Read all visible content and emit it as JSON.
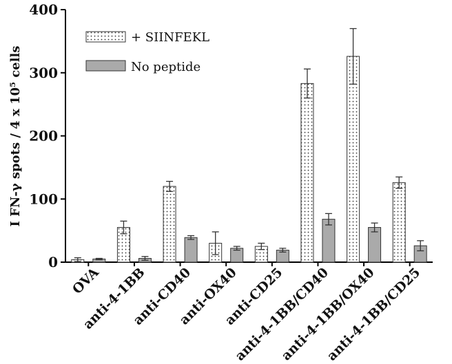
{
  "chart_data": {
    "type": "bar",
    "title": "",
    "xlabel": "",
    "ylabel": "I FN-γ spots / 4 x 10⁵ cells",
    "ylim": [
      0,
      400
    ],
    "yticks": [
      0,
      100,
      200,
      300,
      400
    ],
    "categories": [
      "OVA",
      "anti-4-1BB",
      "anti-CD40",
      "anti-OX40",
      "anti-CD25",
      "anti-4-1BB/CD40",
      "anti-4-1BB/OX40",
      "anti-4-1BB/CD25"
    ],
    "series": [
      {
        "name": "+ SIINFEKL",
        "pattern": "dotted",
        "values": [
          4,
          55,
          120,
          30,
          25,
          283,
          326,
          126
        ],
        "errors": [
          3,
          10,
          8,
          18,
          5,
          23,
          44,
          9
        ]
      },
      {
        "name": "No peptide",
        "color": "#aaaaaa",
        "values": [
          5,
          6,
          39,
          22,
          19,
          68,
          55,
          26
        ],
        "errors": [
          1,
          3,
          3,
          3,
          3,
          9,
          7,
          8
        ]
      }
    ],
    "legend_position": "top-left",
    "grid": false
  }
}
